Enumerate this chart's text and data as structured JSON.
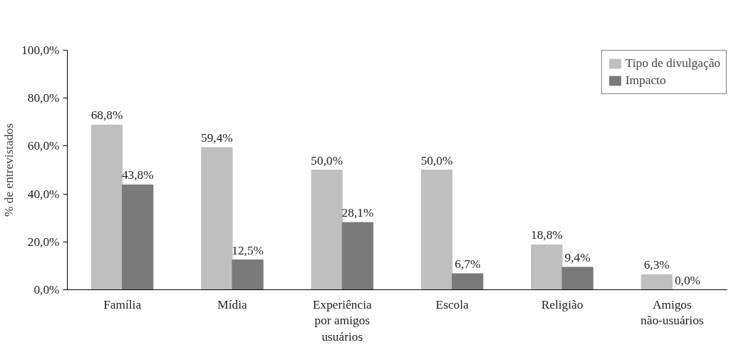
{
  "chart_data": {
    "type": "bar",
    "ylabel": "% de entrevistados",
    "categories": [
      "Família",
      "Mídia",
      "Experiência\npor amigos\nusuários",
      "Escola",
      "Religião",
      "Amigos\nnão-usuários"
    ],
    "series": [
      {
        "name": "Tipo de divulgação",
        "color": "#bfbfbf",
        "values": [
          68.8,
          59.4,
          50.0,
          50.0,
          18.8,
          6.3
        ],
        "value_labels": [
          "68,8%",
          "59,4%",
          "50,0%",
          "50,0%",
          "18,8%",
          "6,3%"
        ]
      },
      {
        "name": "Impacto",
        "color": "#7a7a7a",
        "values": [
          43.8,
          12.5,
          28.1,
          6.7,
          9.4,
          0.0
        ],
        "value_labels": [
          "43,8%",
          "12,5%",
          "28,1%",
          "6,7%",
          "9,4%",
          "0,0%"
        ]
      }
    ],
    "ylim": [
      0,
      100
    ],
    "yticks": [
      {
        "value": 0,
        "label": "0,0%"
      },
      {
        "value": 20,
        "label": "20,0%"
      },
      {
        "value": 40,
        "label": "40,0%"
      },
      {
        "value": 60,
        "label": "60,0%"
      },
      {
        "value": 80,
        "label": "80,0%"
      },
      {
        "value": 100,
        "label": "100,0%"
      }
    ],
    "grid": false,
    "legend": "top right"
  }
}
